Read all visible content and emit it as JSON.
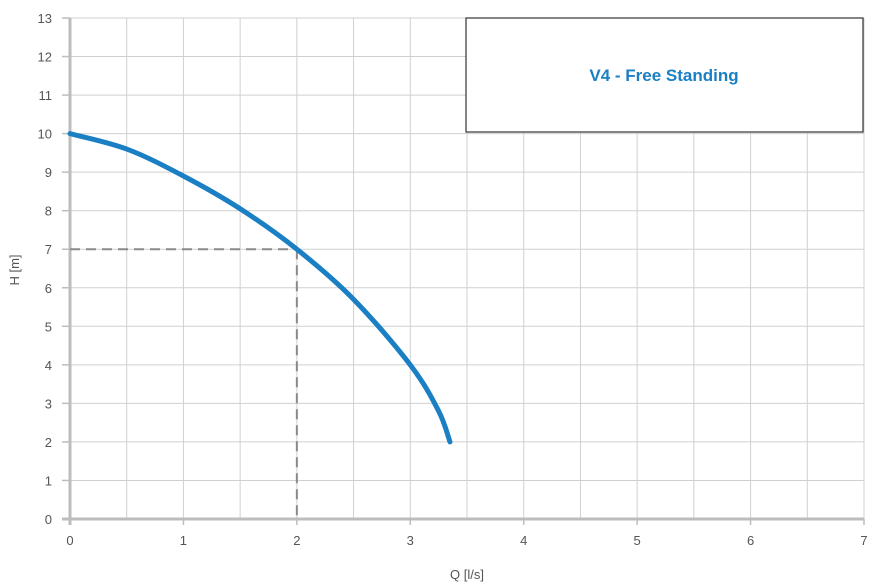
{
  "chart_data": {
    "type": "line",
    "legend_title": "V4 - Free Standing",
    "xlabel": "Q [l/s]",
    "ylabel": "H [m]",
    "xlim": [
      0,
      7
    ],
    "ylim": [
      0,
      13
    ],
    "x_ticks": [
      "0",
      "1",
      "2",
      "3",
      "4",
      "5",
      "6",
      "7"
    ],
    "y_ticks": [
      "0",
      "1",
      "2",
      "3",
      "4",
      "5",
      "6",
      "7",
      "8",
      "9",
      "10",
      "11",
      "12",
      "13"
    ],
    "grid": true,
    "x_grid_step": 0.5,
    "y_grid_step": 1,
    "legend_position": "top-right",
    "series": [
      {
        "color": "#1b7fc4",
        "x": [
          0,
          0.5,
          1.0,
          1.5,
          2.0,
          2.5,
          3.0,
          3.25,
          3.35
        ],
        "y": [
          10,
          9.6,
          8.9,
          8.05,
          7.0,
          5.7,
          4.0,
          2.8,
          2.0
        ]
      }
    ],
    "operating_point": {
      "x": 2,
      "y": 7
    },
    "colors": {
      "grid": "#d0d0d0",
      "axis": "#bdbdbd",
      "guide": "#8a8a8a"
    }
  }
}
